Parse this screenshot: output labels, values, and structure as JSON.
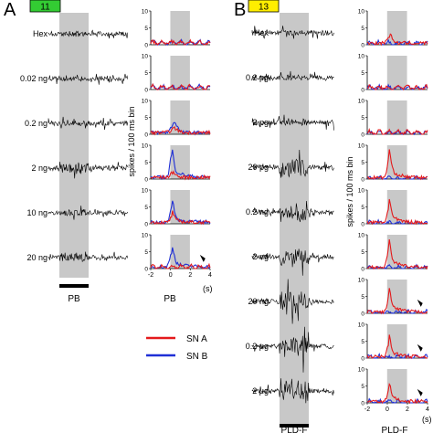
{
  "colors": {
    "sn_a": "#e41a1c",
    "sn_b": "#1f2fd6",
    "stim": "#c8c8c8",
    "badge_a": "#33cc33",
    "badge_b": "#ffee00"
  },
  "panel_a": {
    "letter": "A",
    "badge": "11",
    "rows": [
      "Hex",
      "0.02 ng",
      "0.2 ng",
      "2 ng",
      "10 ng",
      "20 ng"
    ],
    "stim_label": "PB",
    "hist_ylabel": "spikes / 100 ms bin",
    "hist_xlabel": "PB",
    "hist_unit": "(s)",
    "hist_yticks": [
      "0",
      "5",
      "10"
    ],
    "hist_xticks": [
      "-2",
      "0",
      "2",
      "4"
    ]
  },
  "panel_b": {
    "letter": "B",
    "badge": "13",
    "rows": [
      "Hex",
      "0.2 pg",
      "2 pg",
      "20 pg",
      "0.2 ng",
      "2 ng",
      "20 ng",
      "0.2 μg",
      "2 μg"
    ],
    "stim_label": "PLD-F",
    "hist_ylabel": "spikes / 100 ms bin",
    "hist_xlabel": "PLD-F",
    "hist_unit": "(s)",
    "hist_yticks": [
      "0",
      "5",
      "10"
    ],
    "hist_xticks": [
      "-2",
      "0",
      "2",
      "4"
    ]
  },
  "legend": [
    {
      "name": "SN A",
      "color": "#e41a1c"
    },
    {
      "name": "SN B",
      "color": "#1f2fd6"
    }
  ]
}
